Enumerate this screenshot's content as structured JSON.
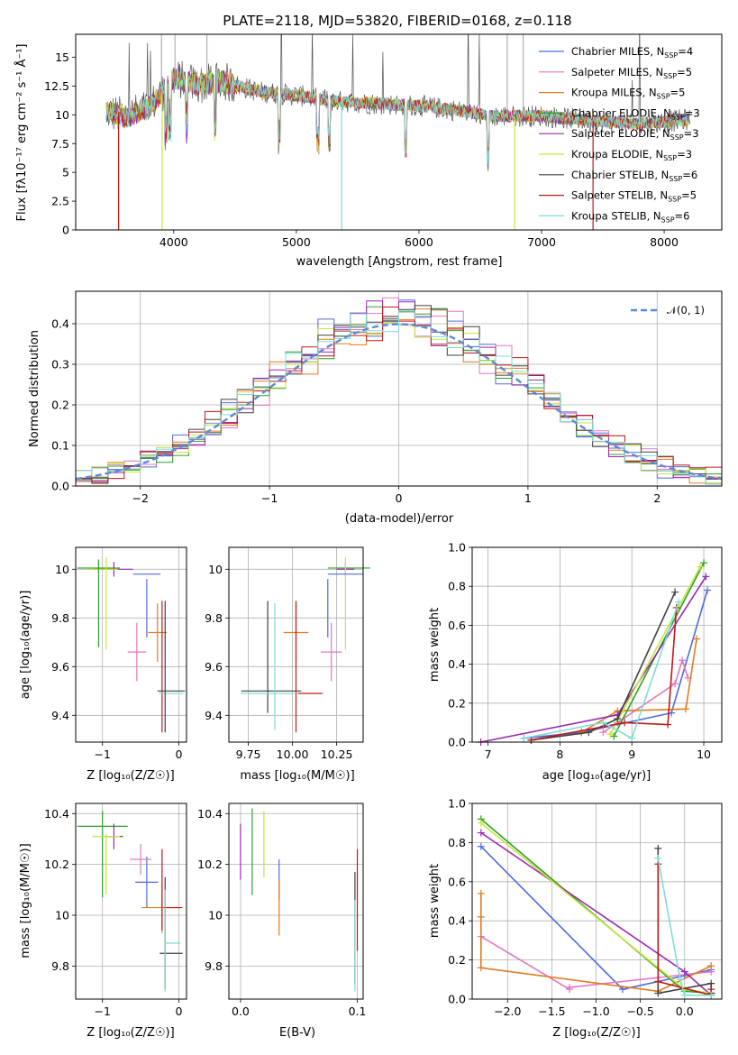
{
  "figure": {
    "title": "PLATE=2118, MJD=53820, FIBERID=0168, z=0.118"
  },
  "chart_data": [
    {
      "id": "spectrum",
      "type": "line",
      "xlabel": "wavelength [Angstrom, rest frame]",
      "ylabel": "Flux [fλ10⁻¹⁷ erg cm⁻² s⁻¹ Å⁻¹]",
      "xlim": [
        3200,
        8470
      ],
      "ylim": [
        0,
        17
      ],
      "xticks": [
        4000,
        5000,
        6000,
        7000,
        8000
      ],
      "yticks": [
        0.0,
        2.5,
        5.0,
        7.5,
        10.0,
        12.5,
        15.0
      ],
      "grid": false,
      "legend_position": "top-right",
      "continuum": {
        "x": [
          3450,
          3600,
          3800,
          4000,
          4200,
          4400,
          4700,
          5000,
          5300,
          5600,
          6000,
          6300,
          6600,
          7000,
          7400,
          7800,
          8200
        ],
        "y": [
          10.3,
          9.8,
          10.6,
          13.2,
          12.6,
          12.9,
          12.0,
          11.7,
          11.2,
          11.0,
          10.8,
          10.4,
          9.9,
          9.9,
          9.5,
          9.2,
          9.6
        ]
      },
      "series": [
        {
          "name": "Chabrier MILES, N_SSP=4",
          "label_main": "Chabrier MILES, N",
          "label_sub": "SSP",
          "label_tail": "=4",
          "color": "#4f6bd8"
        },
        {
          "name": "Salpeter MILES, N_SSP=5",
          "label_main": "Salpeter MILES, N",
          "label_sub": "SSP",
          "label_tail": "=5",
          "color": "#e377c2"
        },
        {
          "name": "Kroupa MILES, N_SSP=5",
          "label_main": "Kroupa MILES, N",
          "label_sub": "SSP",
          "label_tail": "=5",
          "color": "#e07b20"
        },
        {
          "name": "Chabrier ELODIE, N_SSP=3",
          "label_main": "Chabrier ELODIE, N",
          "label_sub": "SSP",
          "label_tail": "=3",
          "color": "#2ca02c"
        },
        {
          "name": "Salpeter ELODIE, N_SSP=3",
          "label_main": "Salpeter ELODIE, N",
          "label_sub": "SSP",
          "label_tail": "=3",
          "color": "#9c27b0"
        },
        {
          "name": "Kroupa ELODIE, N_SSP=3",
          "label_main": "Kroupa ELODIE, N",
          "label_sub": "SSP",
          "label_tail": "=3",
          "color": "#c7e53a"
        },
        {
          "name": "Chabrier STELIB, N_SSP=6",
          "label_main": "Chabrier STELIB, N",
          "label_sub": "SSP",
          "label_tail": "=6",
          "color": "#404040"
        },
        {
          "name": "Salpeter STELIB, N_SSP=5",
          "label_main": "Salpeter STELIB, N",
          "label_sub": "SSP",
          "label_tail": "=5",
          "color": "#c01818"
        },
        {
          "name": "Kroupa STELIB, N_SSP=6",
          "label_main": "Kroupa STELIB, N",
          "label_sub": "SSP",
          "label_tail": "=6",
          "color": "#7fdcd8"
        }
      ]
    },
    {
      "id": "residuals",
      "type": "line",
      "xlabel": "(data-model)/error",
      "ylabel": "Normed distribution",
      "xlim": [
        -2.5,
        2.5
      ],
      "ylim": [
        0,
        0.48
      ],
      "xticks": [
        -2,
        -1,
        0,
        1,
        2
      ],
      "xtick_labels": [
        "−2",
        "−1",
        "0",
        "1",
        "2"
      ],
      "yticks": [
        0.0,
        0.1,
        0.2,
        0.3,
        0.4
      ],
      "yticks_labels": [
        "0.0",
        "0.1",
        "0.2",
        "0.3",
        "0.4"
      ],
      "grid": true,
      "legend_position": "top-right",
      "gaussian_label": "𝒩(0, 1)",
      "gaussian_color": "#5b8ad6"
    },
    {
      "id": "age_vs_Z",
      "type": "scatter",
      "xlabel": "Z [log₁₀(Z/Z☉)]",
      "ylabel": "age  [log₁₀(age/yr)]",
      "xlim": [
        -1.35,
        0.1
      ],
      "ylim": [
        9.29,
        10.09
      ],
      "xticks": [
        -1,
        0
      ],
      "xtick_labels": [
        "−1",
        "0"
      ],
      "yticks": [
        9.4,
        9.6,
        9.8,
        10.0
      ],
      "grid": true,
      "points": [
        {
          "x": -1.05,
          "y": 10.005,
          "xerr": 0.28,
          "yerr": 0.0,
          "color": "#2ca02c"
        },
        {
          "x": -0.85,
          "y": 10.0,
          "xerr": 0.25,
          "yerr": 0.03,
          "color": "#9c27b0"
        },
        {
          "x": -1.0,
          "y": 10.0,
          "xerr": 0.2,
          "yerr": 0.0,
          "color": "#c7e53a"
        },
        {
          "x": -0.95,
          "y": 9.86,
          "xerr": 0.0,
          "yerr": 0.19,
          "color": "#c7e53a"
        },
        {
          "x": -1.05,
          "y": 9.86,
          "xerr": 0.0,
          "yerr": 0.18,
          "color": "#2ca02c"
        },
        {
          "x": -0.42,
          "y": 9.98,
          "xerr": 0.18,
          "yerr": 0.0,
          "color": "#4f6bd8"
        },
        {
          "x": -0.42,
          "y": 9.84,
          "xerr": 0.0,
          "yerr": 0.12,
          "color": "#4f6bd8"
        },
        {
          "x": -0.55,
          "y": 9.66,
          "xerr": 0.12,
          "yerr": 0.12,
          "color": "#e377c2"
        },
        {
          "x": -0.28,
          "y": 9.74,
          "xerr": 0.12,
          "yerr": 0.12,
          "color": "#e07b20"
        },
        {
          "x": -0.22,
          "y": 9.6,
          "xerr": 0.0,
          "yerr": 0.27,
          "color": "#c01818"
        },
        {
          "x": -0.1,
          "y": 9.5,
          "xerr": 0.18,
          "yerr": 0.0,
          "color": "#404040"
        },
        {
          "x": -0.1,
          "y": 9.49,
          "xerr": 0.16,
          "yerr": 0.0,
          "color": "#7fdcd8"
        },
        {
          "x": -0.18,
          "y": 9.6,
          "xerr": 0.0,
          "yerr": 0.27,
          "color": "#404040"
        }
      ]
    },
    {
      "id": "age_vs_mass",
      "type": "scatter",
      "xlabel": "mass [log₁₀(M/M☉)]",
      "ylabel": "",
      "xlim": [
        9.64,
        10.4
      ],
      "ylim": [
        9.29,
        10.09
      ],
      "xticks": [
        9.75,
        10.0,
        10.25
      ],
      "xtick_labels": [
        "9.75",
        "10.00",
        "10.25"
      ],
      "yticks": [
        9.4,
        9.6,
        9.8,
        10.0
      ],
      "grid": true,
      "points": [
        {
          "x": 10.32,
          "y": 10.005,
          "xerr": 0.12,
          "yerr": 0.0,
          "color": "#2ca02c"
        },
        {
          "x": 10.3,
          "y": 10.0,
          "xerr": 0.05,
          "yerr": 0.03,
          "color": "#9c27b0"
        },
        {
          "x": 10.3,
          "y": 9.86,
          "xerr": 0.0,
          "yerr": 0.19,
          "color": "#c7e53a"
        },
        {
          "x": 10.3,
          "y": 9.98,
          "xerr": 0.1,
          "yerr": 0.0,
          "color": "#4f6bd8"
        },
        {
          "x": 10.2,
          "y": 9.84,
          "xerr": 0.0,
          "yerr": 0.12,
          "color": "#4f6bd8"
        },
        {
          "x": 10.22,
          "y": 9.66,
          "xerr": 0.06,
          "yerr": 0.12,
          "color": "#e377c2"
        },
        {
          "x": 10.02,
          "y": 9.74,
          "xerr": 0.07,
          "yerr": 0.12,
          "color": "#e07b20"
        },
        {
          "x": 10.02,
          "y": 9.6,
          "xerr": 0.0,
          "yerr": 0.27,
          "color": "#c01818"
        },
        {
          "x": 10.1,
          "y": 9.49,
          "xerr": 0.07,
          "yerr": 0.0,
          "color": "#c01818"
        },
        {
          "x": 9.88,
          "y": 9.5,
          "xerr": 0.17,
          "yerr": 0.0,
          "color": "#404040"
        },
        {
          "x": 9.86,
          "y": 9.64,
          "xerr": 0.0,
          "yerr": 0.23,
          "color": "#404040"
        },
        {
          "x": 9.9,
          "y": 9.6,
          "xerr": 0.0,
          "yerr": 0.26,
          "color": "#7fdcd8"
        },
        {
          "x": 9.86,
          "y": 9.49,
          "xerr": 0.15,
          "yerr": 0.0,
          "color": "#7fdcd8"
        }
      ]
    },
    {
      "id": "mass_weight_vs_age",
      "type": "line",
      "xlabel": "age  [log₁₀(age/yr)]",
      "ylabel": "mass weight",
      "xlim": [
        6.78,
        10.25
      ],
      "ylim": [
        0,
        1.0
      ],
      "xticks": [
        7,
        8,
        9,
        10
      ],
      "yticks": [
        0.0,
        0.2,
        0.4,
        0.6,
        0.8,
        1.0
      ],
      "yticks_labels": [
        "0.0",
        "0.2",
        "0.4",
        "0.6",
        "0.8",
        "1.0"
      ],
      "grid": true,
      "series": [
        {
          "name": "Chabrier MILES",
          "color": "#4f6bd8",
          "x": [
            7.5,
            8.3,
            9.55,
            10.05
          ],
          "y": [
            0.02,
            0.05,
            0.15,
            0.78
          ]
        },
        {
          "name": "Salpeter MILES",
          "color": "#e377c2",
          "x": [
            8.6,
            8.8,
            9.6,
            9.7,
            9.78
          ],
          "y": [
            0.05,
            0.1,
            0.3,
            0.42,
            0.33
          ]
        },
        {
          "name": "Kroupa MILES",
          "color": "#e07b20",
          "x": [
            8.3,
            8.8,
            9.75,
            9.9
          ],
          "y": [
            0.05,
            0.16,
            0.17,
            0.53
          ]
        },
        {
          "name": "Chabrier ELODIE",
          "color": "#2ca02c",
          "x": [
            8.75,
            10.0
          ],
          "y": [
            0.03,
            0.92
          ]
        },
        {
          "name": "Salpeter ELODIE",
          "color": "#9c27b0",
          "x": [
            6.9,
            8.8,
            10.03
          ],
          "y": [
            0.0,
            0.14,
            0.85
          ]
        },
        {
          "name": "Kroupa ELODIE",
          "color": "#c7e53a",
          "x": [
            8.7,
            9.95
          ],
          "y": [
            0.04,
            0.9
          ]
        },
        {
          "name": "Chabrier STELIB",
          "color": "#404040",
          "x": [
            7.6,
            8.4,
            8.8,
            9.6
          ],
          "y": [
            0.01,
            0.05,
            0.12,
            0.77
          ]
        },
        {
          "name": "Salpeter STELIB",
          "color": "#c01818",
          "x": [
            7.6,
            8.9,
            9.5,
            9.62
          ],
          "y": [
            0.01,
            0.1,
            0.09,
            0.69
          ]
        },
        {
          "name": "Kroupa STELIB",
          "color": "#7fdcd8",
          "x": [
            7.5,
            8.6,
            9.0,
            9.65
          ],
          "y": [
            0.02,
            0.1,
            0.02,
            0.72
          ]
        }
      ]
    },
    {
      "id": "mass_vs_Z",
      "type": "scatter",
      "xlabel": "Z [log₁₀(Z/Z☉)]",
      "ylabel": "mass [log₁₀(M/M☉)]",
      "xlim": [
        -1.35,
        0.1
      ],
      "ylim": [
        9.67,
        10.44
      ],
      "xticks": [
        -1,
        0
      ],
      "xtick_labels": [
        "−1",
        "0"
      ],
      "yticks": [
        9.8,
        10.0,
        10.2,
        10.4
      ],
      "grid": true,
      "points": [
        {
          "x": -1.0,
          "y": 10.35,
          "xerr": 0.33,
          "yerr": 0.0,
          "color": "#2ca02c"
        },
        {
          "x": -1.0,
          "y": 10.24,
          "xerr": 0.0,
          "yerr": 0.17,
          "color": "#2ca02c"
        },
        {
          "x": -0.85,
          "y": 10.31,
          "xerr": 0.12,
          "yerr": 0.05,
          "color": "#9c27b0"
        },
        {
          "x": -0.95,
          "y": 10.31,
          "xerr": 0.18,
          "yerr": 0.0,
          "color": "#c7e53a"
        },
        {
          "x": -0.95,
          "y": 10.2,
          "xerr": 0.0,
          "yerr": 0.12,
          "color": "#c7e53a"
        },
        {
          "x": -0.42,
          "y": 10.13,
          "xerr": 0.15,
          "yerr": 0.1,
          "color": "#4f6bd8"
        },
        {
          "x": -0.5,
          "y": 10.22,
          "xerr": 0.14,
          "yerr": 0.06,
          "color": "#e377c2"
        },
        {
          "x": -0.22,
          "y": 10.03,
          "xerr": 0.27,
          "yerr": 0.1,
          "color": "#e07b20"
        },
        {
          "x": -0.22,
          "y": 10.1,
          "xerr": 0.0,
          "yerr": 0.16,
          "color": "#c01818"
        },
        {
          "x": -0.08,
          "y": 10.03,
          "xerr": 0.12,
          "yerr": 0.0,
          "color": "#c01818"
        },
        {
          "x": -0.1,
          "y": 9.85,
          "xerr": 0.15,
          "yerr": 0.0,
          "color": "#404040"
        },
        {
          "x": -0.18,
          "y": 9.93,
          "xerr": 0.0,
          "yerr": 0.22,
          "color": "#404040"
        },
        {
          "x": -0.08,
          "y": 9.89,
          "xerr": 0.1,
          "yerr": 0.0,
          "color": "#7fdcd8"
        },
        {
          "x": -0.18,
          "y": 9.9,
          "xerr": 0.0,
          "yerr": 0.2,
          "color": "#7fdcd8"
        }
      ]
    },
    {
      "id": "mass_vs_EBV",
      "type": "scatter",
      "xlabel": "E(B-V)",
      "ylabel": "",
      "xlim": [
        -0.01,
        0.105
      ],
      "ylim": [
        9.67,
        10.44
      ],
      "xticks": [
        0.0,
        0.1
      ],
      "xtick_labels": [
        "0.0",
        "0.1"
      ],
      "yticks": [
        9.8,
        10.0,
        10.2,
        10.4
      ],
      "grid": true,
      "points": [
        {
          "x": 0.0,
          "y": 10.25,
          "xerr": 0.0,
          "yerr": 0.11,
          "color": "#9c27b0"
        },
        {
          "x": 0.01,
          "y": 10.25,
          "xerr": 0.0,
          "yerr": 0.17,
          "color": "#2ca02c"
        },
        {
          "x": 0.02,
          "y": 10.28,
          "xerr": 0.0,
          "yerr": 0.13,
          "color": "#c7e53a"
        },
        {
          "x": 0.033,
          "y": 10.14,
          "xerr": 0.0,
          "yerr": 0.08,
          "color": "#4f6bd8"
        },
        {
          "x": 0.033,
          "y": 10.03,
          "xerr": 0.0,
          "yerr": 0.11,
          "color": "#e07b20"
        },
        {
          "x": 0.098,
          "y": 9.95,
          "xerr": 0.0,
          "yerr": 0.22,
          "color": "#404040"
        },
        {
          "x": 0.1,
          "y": 10.06,
          "xerr": 0.0,
          "yerr": 0.2,
          "color": "#c01818"
        },
        {
          "x": 0.098,
          "y": 9.88,
          "xerr": 0.0,
          "yerr": 0.18,
          "color": "#7fdcd8"
        }
      ]
    },
    {
      "id": "mass_weight_vs_Z",
      "type": "line",
      "xlabel": "Z [log₁₀(Z/Z☉)]",
      "ylabel": "mass weight",
      "xlim": [
        -2.4,
        0.42
      ],
      "ylim": [
        0,
        1.0
      ],
      "xticks": [
        -2.0,
        -1.5,
        -1.0,
        -0.5,
        0.0
      ],
      "xtick_labels": [
        "−2.0",
        "−1.5",
        "−1.0",
        "−0.5",
        "0.0"
      ],
      "yticks": [
        0.0,
        0.2,
        0.4,
        0.6,
        0.8,
        1.0
      ],
      "yticks_labels": [
        "0.0",
        "0.2",
        "0.4",
        "0.6",
        "0.8",
        "1.0"
      ],
      "grid": true,
      "series": [
        {
          "name": "Chabrier MILES",
          "color": "#4f6bd8",
          "x": [
            -2.3,
            -0.7,
            0.0,
            0.3
          ],
          "y": [
            0.78,
            0.05,
            0.12,
            0.15
          ]
        },
        {
          "name": "Salpeter MILES",
          "color": "#e377c2",
          "x": [
            -2.3,
            -1.3,
            -1.3,
            0.3
          ],
          "y": [
            0.32,
            0.05,
            0.06,
            0.14
          ]
        },
        {
          "name": "Kroupa MILES",
          "color": "#e07b20",
          "x": [
            -2.3,
            -2.3,
            -2.3,
            -0.3,
            0.3
          ],
          "y": [
            0.54,
            0.42,
            0.16,
            0.04,
            0.17
          ]
        },
        {
          "name": "Chabrier ELODIE",
          "color": "#2ca02c",
          "x": [
            -2.3,
            0.0,
            0.3
          ],
          "y": [
            0.92,
            0.04,
            0.03
          ]
        },
        {
          "name": "Salpeter ELODIE",
          "color": "#9c27b0",
          "x": [
            -2.3,
            0.0,
            0.3
          ],
          "y": [
            0.85,
            0.14,
            0.02
          ]
        },
        {
          "name": "Kroupa ELODIE",
          "color": "#c7e53a",
          "x": [
            -2.3,
            0.0,
            0.3
          ],
          "y": [
            0.9,
            0.05,
            0.03
          ]
        },
        {
          "name": "Chabrier STELIB",
          "color": "#404040",
          "x": [
            -0.3,
            -0.3,
            0.3,
            0.3
          ],
          "y": [
            0.77,
            0.03,
            0.08,
            0.03
          ]
        },
        {
          "name": "Salpeter STELIB",
          "color": "#c01818",
          "x": [
            -0.3,
            -0.3,
            0.3,
            0.3
          ],
          "y": [
            0.69,
            0.09,
            0.02,
            0.05
          ]
        },
        {
          "name": "Kroupa STELIB",
          "color": "#7fdcd8",
          "x": [
            -0.3,
            -0.05,
            0.0,
            0.3
          ],
          "y": [
            0.72,
            0.1,
            0.02,
            0.02
          ]
        }
      ]
    }
  ]
}
